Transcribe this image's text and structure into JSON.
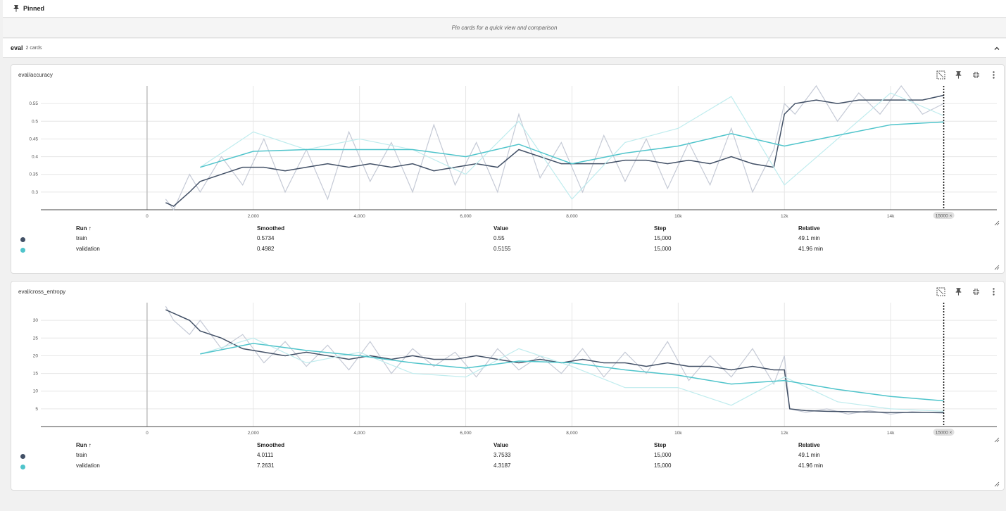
{
  "pinned": {
    "label": "Pinned",
    "empty_message": "Pin cards for a quick view and comparison"
  },
  "group": {
    "name": "eval",
    "count": "2 cards"
  },
  "colors": {
    "train": "#425066",
    "train_raw": "#c5cad6",
    "validation": "#4fc4cb",
    "validation_raw": "#bfecee"
  },
  "table_headers": {
    "run": "Run ↑",
    "smoothed": "Smoothed",
    "value": "Value",
    "step": "Step",
    "relative": "Relative"
  },
  "cards": [
    {
      "title": "eval/accuracy",
      "step_chip": "15000 ×",
      "rows": [
        {
          "run": "train",
          "smoothed": "0.5734",
          "value": "0.55",
          "step": "15,000",
          "relative": "49.1 min"
        },
        {
          "run": "validation",
          "smoothed": "0.4982",
          "value": "0.5155",
          "step": "15,000",
          "relative": "41.96 min"
        }
      ]
    },
    {
      "title": "eval/cross_entropy",
      "step_chip": "15000 ×",
      "rows": [
        {
          "run": "train",
          "smoothed": "4.0111",
          "value": "3.7533",
          "step": "15,000",
          "relative": "49.1 min"
        },
        {
          "run": "validation",
          "smoothed": "7.2631",
          "value": "4.3187",
          "step": "15,000",
          "relative": "41.96 min"
        }
      ]
    }
  ],
  "chart_data": [
    {
      "type": "line",
      "title": "eval/accuracy",
      "xlim": [
        -2000,
        16000
      ],
      "ylim": [
        0.25,
        0.6
      ],
      "xticks": [
        0,
        2000,
        4000,
        6000,
        8000,
        10000,
        12000,
        14000
      ],
      "xtick_labels": [
        "0",
        "2,000",
        "4,000",
        "6,000",
        "8,000",
        "10k",
        "12k",
        "14k"
      ],
      "yticks": [
        0.3,
        0.35,
        0.4,
        0.45,
        0.5,
        0.55
      ],
      "ytick_labels": [
        "0.3",
        "0.35",
        "0.4",
        "0.45",
        "0.5",
        "0.55"
      ],
      "cursor_step": 15000,
      "series": [
        {
          "name": "train",
          "x": [
            350,
            500,
            800,
            1000,
            1400,
            1800,
            2200,
            2600,
            3000,
            3400,
            3800,
            4200,
            4600,
            5000,
            5400,
            5800,
            6200,
            6600,
            7000,
            7400,
            7800,
            8200,
            8600,
            9000,
            9400,
            9800,
            10200,
            10600,
            11000,
            11400,
            11800,
            12000,
            12200,
            12600,
            13000,
            13400,
            13800,
            14200,
            14600,
            15000
          ],
          "smoothed": [
            0.27,
            0.26,
            0.3,
            0.33,
            0.35,
            0.37,
            0.37,
            0.36,
            0.37,
            0.38,
            0.37,
            0.38,
            0.37,
            0.38,
            0.36,
            0.37,
            0.38,
            0.37,
            0.42,
            0.4,
            0.38,
            0.38,
            0.38,
            0.39,
            0.39,
            0.38,
            0.39,
            0.38,
            0.4,
            0.38,
            0.37,
            0.52,
            0.55,
            0.56,
            0.55,
            0.56,
            0.56,
            0.56,
            0.56,
            0.5734
          ],
          "raw": [
            0.28,
            0.25,
            0.35,
            0.3,
            0.4,
            0.32,
            0.45,
            0.3,
            0.42,
            0.28,
            0.47,
            0.33,
            0.44,
            0.3,
            0.49,
            0.32,
            0.44,
            0.3,
            0.52,
            0.34,
            0.44,
            0.3,
            0.46,
            0.33,
            0.45,
            0.31,
            0.44,
            0.32,
            0.48,
            0.3,
            0.42,
            0.55,
            0.52,
            0.6,
            0.5,
            0.58,
            0.52,
            0.6,
            0.52,
            0.55
          ]
        },
        {
          "name": "validation",
          "x": [
            1000,
            2000,
            3000,
            4000,
            5000,
            6000,
            7000,
            8000,
            9000,
            10000,
            11000,
            12000,
            13000,
            14000,
            15000
          ],
          "smoothed": [
            0.37,
            0.415,
            0.42,
            0.42,
            0.42,
            0.4,
            0.435,
            0.38,
            0.41,
            0.43,
            0.465,
            0.43,
            0.46,
            0.49,
            0.4982
          ],
          "raw": [
            0.37,
            0.47,
            0.42,
            0.45,
            0.42,
            0.35,
            0.5,
            0.28,
            0.44,
            0.48,
            0.57,
            0.32,
            0.45,
            0.58,
            0.5155
          ]
        }
      ]
    },
    {
      "type": "line",
      "title": "eval/cross_entropy",
      "xlim": [
        -2000,
        16000
      ],
      "ylim": [
        0,
        35
      ],
      "xticks": [
        0,
        2000,
        4000,
        6000,
        8000,
        10000,
        12000,
        14000
      ],
      "xtick_labels": [
        "0",
        "2,000",
        "4,000",
        "6,000",
        "8,000",
        "10k",
        "12k",
        "14k"
      ],
      "yticks": [
        5,
        10,
        15,
        20,
        25,
        30
      ],
      "ytick_labels": [
        "5",
        "10",
        "15",
        "20",
        "25",
        "30"
      ],
      "cursor_step": 15000,
      "series": [
        {
          "name": "train",
          "x": [
            350,
            500,
            800,
            1000,
            1400,
            1800,
            2200,
            2600,
            3000,
            3400,
            3800,
            4200,
            4600,
            5000,
            5400,
            5800,
            6200,
            6600,
            7000,
            7400,
            7800,
            8200,
            8600,
            9000,
            9400,
            9800,
            10200,
            10600,
            11000,
            11400,
            11800,
            12000,
            12100,
            12400,
            12800,
            13200,
            13600,
            14000,
            14400,
            15000
          ],
          "smoothed": [
            33,
            32,
            30,
            27,
            25,
            22,
            21,
            20,
            21,
            20,
            19,
            20,
            19,
            20,
            19,
            19,
            20,
            19,
            18,
            19,
            18,
            19,
            18,
            18,
            17,
            18,
            17,
            17,
            16,
            17,
            16,
            16,
            5,
            4.5,
            4.3,
            4.2,
            4.1,
            4.0,
            4.0,
            4.0111
          ],
          "raw": [
            34,
            30,
            26,
            30,
            22,
            26,
            18,
            24,
            17,
            23,
            16,
            24,
            15,
            22,
            17,
            21,
            14,
            22,
            16,
            20,
            15,
            22,
            14,
            21,
            15,
            24,
            13,
            20,
            14,
            22,
            12,
            20,
            5,
            4,
            5,
            3.5,
            4.5,
            3.5,
            4.2,
            3.7533
          ]
        },
        {
          "name": "validation",
          "x": [
            1000,
            2000,
            3000,
            4000,
            5000,
            6000,
            7000,
            8000,
            9000,
            10000,
            11000,
            12000,
            13000,
            14000,
            15000
          ],
          "smoothed": [
            20.5,
            23.5,
            21.5,
            20,
            18,
            16.5,
            18.5,
            18,
            16,
            14.5,
            12,
            13,
            10.5,
            8.5,
            7.2631
          ],
          "raw": [
            20.5,
            25,
            18,
            21,
            15,
            14,
            22,
            17,
            11,
            11,
            6,
            14,
            7,
            5,
            4.3187
          ]
        }
      ]
    }
  ]
}
